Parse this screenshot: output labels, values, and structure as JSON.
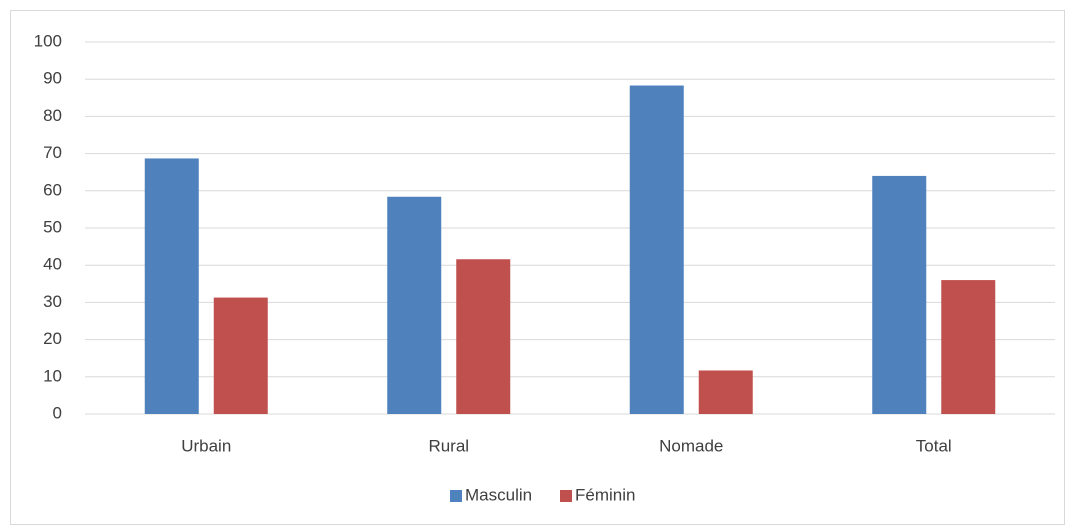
{
  "chart_data": {
    "type": "bar",
    "categories": [
      "Urbain",
      "Rural",
      "Nomade",
      "Total"
    ],
    "series": [
      {
        "name": "Masculin",
        "color": "#4f81bd",
        "values": [
          68.7,
          58.4,
          88.3,
          64
        ]
      },
      {
        "name": "Féminin",
        "color": "#c0504d",
        "values": [
          31.3,
          41.6,
          11.7,
          36
        ]
      }
    ],
    "ylim": [
      0,
      100
    ],
    "yticks": [
      0,
      10,
      20,
      30,
      40,
      50,
      60,
      70,
      80,
      90,
      100
    ],
    "grid": true,
    "legend": "bottom"
  }
}
